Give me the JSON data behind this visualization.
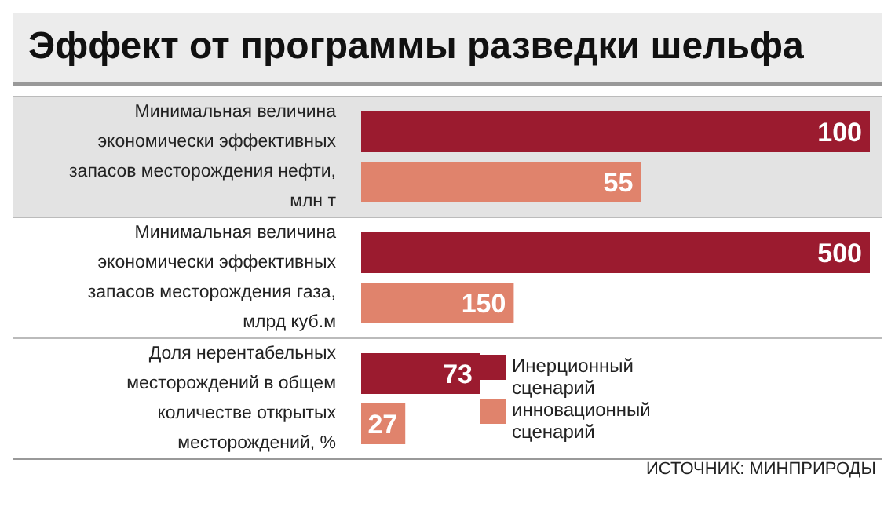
{
  "chart_data": [
    {
      "type": "bar",
      "orientation": "horizontal",
      "title": "Эффект от программы разведки шельфа",
      "categories": [
        "Минимальная величина экономически эффективных запасов месторождения нефти, млн т"
      ],
      "tick_labels": "y",
      "data_labels": true,
      "legend": false,
      "series": [
        {
          "color": "#9b1b2f",
          "values": [
            100
          ]
        },
        {
          "color": "#e0836c",
          "values": [
            55
          ]
        }
      ]
    },
    {
      "type": "bar",
      "orientation": "horizontal",
      "categories": [
        "Минимальная величина экономически эффективных запасов месторождения газа, млрд куб.м"
      ],
      "tick_labels": "y",
      "data_labels": true,
      "legend": false,
      "series": [
        {
          "color": "#9b1b2f",
          "values": [
            500
          ]
        },
        {
          "color": "#e0836c",
          "values": [
            150
          ]
        }
      ]
    },
    {
      "type": "bar",
      "orientation": "horizontal",
      "categories": [
        "Доля нерентабельных месторождений в общем количестве открытых месторождений, %"
      ],
      "tick_labels": "y",
      "data_labels": true,
      "legend": "right",
      "annotations": [
        "ИСТОЧНИК: МИНПРИРОДЫ"
      ],
      "series": [
        {
          "name": "Инерционный сценарий",
          "color": "#9b1b2f",
          "values": [
            73
          ]
        },
        {
          "name": "инновационный сценарий",
          "color": "#e0836c",
          "values": [
            27
          ]
        }
      ]
    }
  ]
}
